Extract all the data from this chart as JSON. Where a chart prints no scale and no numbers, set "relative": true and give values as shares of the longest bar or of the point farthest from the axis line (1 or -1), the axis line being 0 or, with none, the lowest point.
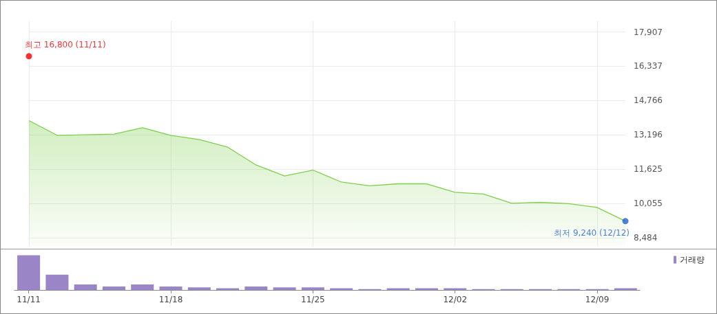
{
  "chart_data": [
    {
      "type": "area",
      "categories": [
        "11/11",
        null,
        null,
        null,
        null,
        "11/18",
        null,
        null,
        null,
        null,
        "11/25",
        null,
        null,
        null,
        null,
        "12/02",
        null,
        null,
        null,
        null,
        "12/09",
        null
      ],
      "series": [
        {
          "color": "#7dcf4b",
          "values": [
            13850,
            13170,
            13200,
            13230,
            13520,
            13170,
            12980,
            12630,
            11810,
            11310,
            11580,
            11030,
            10860,
            10950,
            10950,
            10560,
            10480,
            10060,
            10100,
            10040,
            9870,
            9240
          ]
        },
        {
          "type": "scatter",
          "color": "#f00000",
          "values": [
            16800,
            null,
            null,
            null,
            null,
            null,
            null,
            null,
            null,
            null,
            null,
            null,
            null,
            null,
            null,
            null,
            null,
            null,
            null,
            null,
            null,
            null
          ]
        },
        {
          "type": "scatter",
          "color": "#1e64d2",
          "values": [
            null,
            null,
            null,
            null,
            null,
            null,
            null,
            null,
            null,
            null,
            null,
            null,
            null,
            null,
            null,
            null,
            null,
            null,
            null,
            null,
            null,
            9240
          ]
        }
      ],
      "ylim": [
        8100,
        18400
      ],
      "yticks": [
        {
          "value": 8484,
          "label": "8,484"
        },
        {
          "value": 10055,
          "label": "10,055"
        },
        {
          "value": 11625,
          "label": "11,625"
        },
        {
          "value": 13196,
          "label": "13,196"
        },
        {
          "value": 14766,
          "label": "14,766"
        },
        {
          "value": 16337,
          "label": "16,337"
        },
        {
          "value": 17907,
          "label": "17,907"
        }
      ],
      "grid": true,
      "tick_labels": "y",
      "annotations": [
        {
          "text": "최고 16,800 (11/11)",
          "x": "11/11",
          "y": 16800
        },
        "최저 9,240 (12/12)"
      ]
    },
    {
      "type": "bar",
      "categories": [
        "11/11",
        null,
        null,
        null,
        null,
        "11/18",
        null,
        null,
        null,
        null,
        "11/25",
        null,
        null,
        null,
        null,
        "12/02",
        null,
        null,
        null,
        null,
        "12/09",
        null
      ],
      "series": [
        {
          "name": "거래량",
          "color": "#9a85c7",
          "values": [
            1,
            0.44,
            0.16,
            0.1,
            0.16,
            0.1,
            0.075,
            0.05,
            0.1,
            0.075,
            0.075,
            0.05,
            0.025,
            0.05,
            0.05,
            0.05,
            0.025,
            0.025,
            0.025,
            0.025,
            0.025,
            0.05
          ]
        }
      ],
      "relative": true,
      "legend": "top right",
      "tick_labels": "x"
    }
  ]
}
